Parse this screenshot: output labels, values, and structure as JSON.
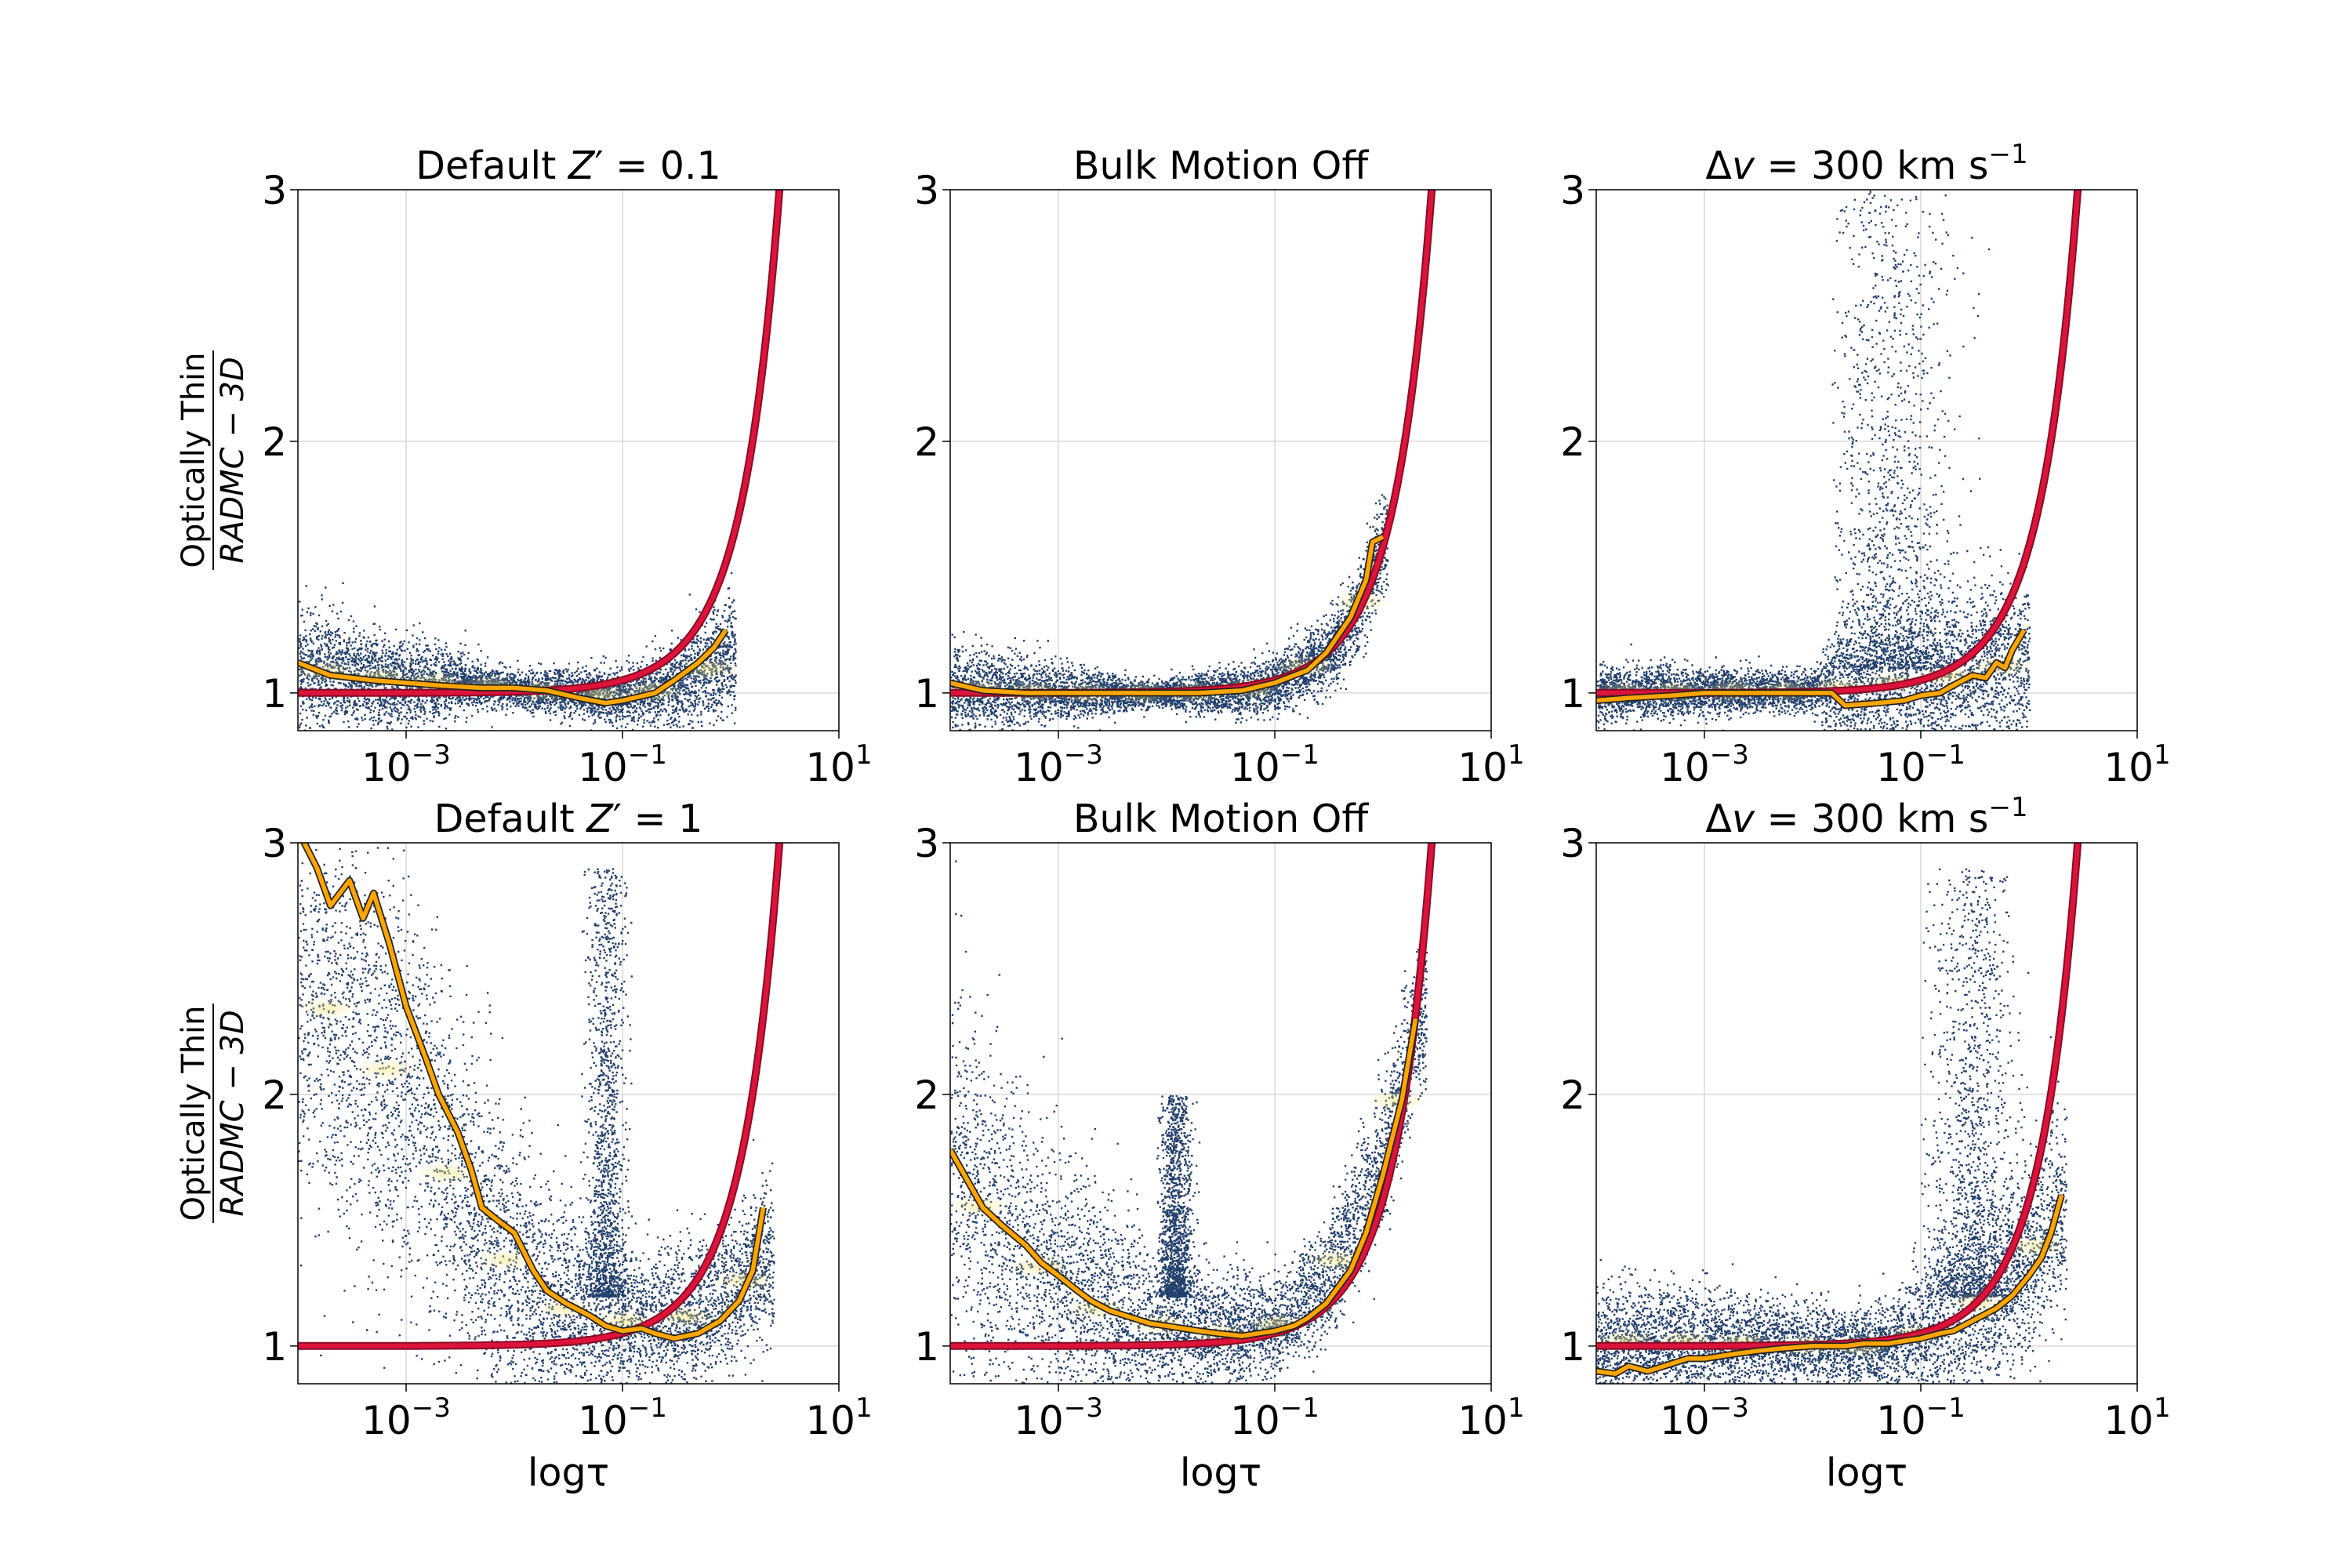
{
  "colors": {
    "scatter_low": "#0b2a5c",
    "scatter_high": "#f2e27a",
    "median_line": "#ffa500",
    "median_edge": "#222222",
    "model_curve": "#dc143c"
  },
  "chart_data": [
    {
      "type": "scatter",
      "title": "Default Z' = 0.1",
      "title_parts": [
        "Default ",
        "Z",
        "′",
        " = 0.1"
      ],
      "xscale": "log",
      "xlim": [
        0.0001,
        10
      ],
      "ylim": [
        0.85,
        3
      ],
      "xticks": [
        0.001,
        0.1,
        10
      ],
      "xtick_labels": [
        {
          "base": "10",
          "exp": "−3"
        },
        {
          "base": "10",
          "exp": "−1"
        },
        {
          "base": "10",
          "exp": "1"
        }
      ],
      "yticks": [
        1,
        2,
        3
      ],
      "ytick_labels": [
        "1",
        "2",
        "3"
      ],
      "ylabel": {
        "numerator": "Optically Thin",
        "denominator": "RADMC − 3D"
      },
      "xlabel": "",
      "scatter_profile": {
        "center": [
          [
            0.0001,
            1.1
          ],
          [
            0.001,
            1.05
          ],
          [
            0.005,
            1.03
          ],
          [
            0.01,
            1.02
          ],
          [
            0.03,
            1.0
          ],
          [
            0.1,
            0.99
          ],
          [
            0.3,
            1.02
          ],
          [
            1,
            1.15
          ]
        ],
        "spread": [
          [
            0.0001,
            0.16
          ],
          [
            0.001,
            0.13
          ],
          [
            0.008,
            0.05
          ],
          [
            0.02,
            0.06
          ],
          [
            0.1,
            0.08
          ],
          [
            0.5,
            0.15
          ],
          [
            1,
            0.18
          ]
        ],
        "x_range": [
          0.0001,
          1.1
        ],
        "plume": null
      },
      "median_line": {
        "x": [
          0.0001,
          0.0002,
          0.0005,
          0.001,
          0.002,
          0.005,
          0.01,
          0.02,
          0.04,
          0.07,
          0.1,
          0.2,
          0.3,
          0.5,
          0.7,
          0.9
        ],
        "y": [
          1.12,
          1.07,
          1.05,
          1.04,
          1.03,
          1.02,
          1.02,
          1.01,
          0.98,
          0.96,
          0.97,
          1.0,
          1.05,
          1.12,
          1.18,
          1.25
        ]
      },
      "model_curve": "tau/(1-exp(-tau))"
    },
    {
      "type": "scatter",
      "title": "Bulk Motion Off",
      "title_parts": [
        "Bulk Motion Off"
      ],
      "xscale": "log",
      "xlim": [
        0.0001,
        10
      ],
      "ylim": [
        0.85,
        3
      ],
      "xticks": [
        0.001,
        0.1,
        10
      ],
      "xtick_labels": [
        {
          "base": "10",
          "exp": "−3"
        },
        {
          "base": "10",
          "exp": "−1"
        },
        {
          "base": "10",
          "exp": "1"
        }
      ],
      "yticks": [
        1,
        2,
        3
      ],
      "ytick_labels": [
        "1",
        "2",
        "3"
      ],
      "ylabel": null,
      "xlabel": "",
      "scatter_profile": {
        "center": [
          [
            0.0001,
            1.02
          ],
          [
            0.001,
            1.0
          ],
          [
            0.01,
            1.0
          ],
          [
            0.05,
            1.01
          ],
          [
            0.1,
            1.04
          ],
          [
            0.3,
            1.15
          ],
          [
            0.6,
            1.35
          ],
          [
            1,
            1.6
          ]
        ],
        "spread": [
          [
            0.0001,
            0.12
          ],
          [
            0.001,
            0.08
          ],
          [
            0.008,
            0.03
          ],
          [
            0.02,
            0.06
          ],
          [
            0.1,
            0.08
          ],
          [
            0.5,
            0.12
          ],
          [
            1,
            0.15
          ]
        ],
        "x_range": [
          0.0001,
          1.1
        ],
        "plume": null
      },
      "median_line": {
        "x": [
          0.0001,
          0.0002,
          0.0005,
          0.001,
          0.002,
          0.005,
          0.01,
          0.02,
          0.05,
          0.1,
          0.2,
          0.3,
          0.5,
          0.7,
          0.8,
          1.0
        ],
        "y": [
          1.04,
          1.01,
          1.0,
          1.0,
          1.0,
          1.0,
          1.0,
          1.0,
          1.01,
          1.04,
          1.09,
          1.16,
          1.3,
          1.45,
          1.6,
          1.62
        ]
      },
      "model_curve": "tau/(1-exp(-tau))"
    },
    {
      "type": "scatter",
      "title": "Δv = 300 km s⁻¹",
      "title_parts": [
        "Δ",
        "v",
        " = 300 km s",
        "−1"
      ],
      "xscale": "log",
      "xlim": [
        0.0001,
        10
      ],
      "ylim": [
        0.85,
        3
      ],
      "xticks": [
        0.001,
        0.1,
        10
      ],
      "xtick_labels": [
        {
          "base": "10",
          "exp": "−3"
        },
        {
          "base": "10",
          "exp": "−1"
        },
        {
          "base": "10",
          "exp": "1"
        }
      ],
      "yticks": [
        1,
        2,
        3
      ],
      "ytick_labels": [
        "1",
        "2",
        "3"
      ],
      "ylabel": null,
      "xlabel": "",
      "scatter_profile": {
        "center": [
          [
            0.0001,
            1.0
          ],
          [
            0.001,
            1.01
          ],
          [
            0.01,
            1.01
          ],
          [
            0.015,
            1.02
          ],
          [
            0.1,
            1.05
          ],
          [
            0.5,
            1.1
          ],
          [
            1,
            1.15
          ]
        ],
        "spread": [
          [
            0.0001,
            0.08
          ],
          [
            0.001,
            0.07
          ],
          [
            0.01,
            0.05
          ],
          [
            0.02,
            0.2
          ],
          [
            0.1,
            0.25
          ],
          [
            1,
            0.25
          ]
        ],
        "x_range": [
          0.0001,
          1.0
        ],
        "plume": {
          "x_range": [
            0.015,
            0.6
          ],
          "y_range": [
            1.1,
            3.0
          ],
          "peak_x": 0.05
        }
      },
      "median_line": {
        "x": [
          0.0001,
          0.0002,
          0.0005,
          0.001,
          0.003,
          0.01,
          0.015,
          0.02,
          0.04,
          0.07,
          0.1,
          0.15,
          0.2,
          0.3,
          0.4,
          0.5,
          0.6,
          0.7,
          0.9
        ],
        "y": [
          0.97,
          0.98,
          0.99,
          1.0,
          1.0,
          1.0,
          1.0,
          0.95,
          0.96,
          0.97,
          0.99,
          1.0,
          1.03,
          1.07,
          1.06,
          1.12,
          1.1,
          1.17,
          1.25
        ]
      },
      "model_curve": "tau/(1-exp(-tau))"
    },
    {
      "type": "scatter",
      "title": "Default Z' = 1",
      "title_parts": [
        "Default ",
        "Z",
        "′",
        " = 1"
      ],
      "xscale": "log",
      "xlim": [
        0.0001,
        10
      ],
      "ylim": [
        0.85,
        3
      ],
      "xticks": [
        0.001,
        0.1,
        10
      ],
      "xtick_labels": [
        {
          "base": "10",
          "exp": "−3"
        },
        {
          "base": "10",
          "exp": "−1"
        },
        {
          "base": "10",
          "exp": "1"
        }
      ],
      "yticks": [
        1,
        2,
        3
      ],
      "ytick_labels": [
        "1",
        "2",
        "3"
      ],
      "ylabel": {
        "numerator": "Optically Thin",
        "denominator": "RADMC − 3D"
      },
      "xlabel": "logτ",
      "scatter_profile": {
        "center": [
          [
            0.0001,
            2.4
          ],
          [
            0.0003,
            2.3
          ],
          [
            0.001,
            2.0
          ],
          [
            0.003,
            1.6
          ],
          [
            0.01,
            1.3
          ],
          [
            0.03,
            1.15
          ],
          [
            0.1,
            1.1
          ],
          [
            0.3,
            1.1
          ],
          [
            1,
            1.2
          ],
          [
            2,
            1.35
          ]
        ],
        "spread": [
          [
            0.0001,
            0.6
          ],
          [
            0.001,
            0.6
          ],
          [
            0.01,
            0.4
          ],
          [
            0.05,
            0.25
          ],
          [
            0.2,
            0.2
          ],
          [
            1,
            0.2
          ],
          [
            2,
            0.22
          ]
        ],
        "x_range": [
          0.0001,
          2.5
        ],
        "plume": {
          "x_range": [
            0.04,
            0.12
          ],
          "y_range": [
            1.2,
            2.9
          ],
          "peak_x": 0.07
        }
      },
      "median_line": {
        "x": [
          0.0001,
          0.00015,
          0.0002,
          0.0003,
          0.0004,
          0.0005,
          0.0007,
          0.001,
          0.0015,
          0.002,
          0.003,
          0.004,
          0.005,
          0.007,
          0.01,
          0.015,
          0.02,
          0.03,
          0.05,
          0.07,
          0.1,
          0.15,
          0.2,
          0.3,
          0.5,
          0.8,
          1.2,
          1.6,
          2.0
        ],
        "y": [
          3.05,
          2.9,
          2.75,
          2.85,
          2.7,
          2.8,
          2.6,
          2.35,
          2.15,
          2.0,
          1.85,
          1.7,
          1.55,
          1.5,
          1.45,
          1.3,
          1.22,
          1.17,
          1.12,
          1.08,
          1.06,
          1.07,
          1.05,
          1.03,
          1.05,
          1.1,
          1.18,
          1.3,
          1.55
        ]
      },
      "model_curve": "tau/(1-exp(-tau))"
    },
    {
      "type": "scatter",
      "title": "Bulk Motion Off",
      "title_parts": [
        "Bulk Motion Off"
      ],
      "xscale": "log",
      "xlim": [
        0.0001,
        10
      ],
      "ylim": [
        0.85,
        3
      ],
      "xticks": [
        0.001,
        0.1,
        10
      ],
      "xtick_labels": [
        {
          "base": "10",
          "exp": "−3"
        },
        {
          "base": "10",
          "exp": "−1"
        },
        {
          "base": "10",
          "exp": "1"
        }
      ],
      "yticks": [
        1,
        2,
        3
      ],
      "ytick_labels": [
        "1",
        "2",
        "3"
      ],
      "ylabel": null,
      "xlabel": "logτ",
      "scatter_profile": {
        "center": [
          [
            0.0001,
            1.7
          ],
          [
            0.0003,
            1.45
          ],
          [
            0.001,
            1.25
          ],
          [
            0.003,
            1.12
          ],
          [
            0.01,
            1.08
          ],
          [
            0.03,
            1.05
          ],
          [
            0.1,
            1.08
          ],
          [
            0.3,
            1.25
          ],
          [
            1,
            1.75
          ],
          [
            2,
            2.3
          ]
        ],
        "spread": [
          [
            0.0001,
            0.55
          ],
          [
            0.001,
            0.4
          ],
          [
            0.01,
            0.2
          ],
          [
            0.05,
            0.15
          ],
          [
            0.2,
            0.15
          ],
          [
            1,
            0.2
          ],
          [
            2,
            0.2
          ]
        ],
        "x_range": [
          0.0001,
          2.5
        ],
        "plume": {
          "x_range": [
            0.008,
            0.02
          ],
          "y_range": [
            1.2,
            2.0
          ],
          "peak_x": 0.012
        }
      },
      "median_line": {
        "x": [
          0.0001,
          0.0002,
          0.0003,
          0.0005,
          0.0007,
          0.001,
          0.0015,
          0.002,
          0.003,
          0.005,
          0.007,
          0.01,
          0.02,
          0.03,
          0.05,
          0.07,
          0.1,
          0.15,
          0.2,
          0.3,
          0.5,
          0.7,
          1.0,
          1.5,
          2.0
        ],
        "y": [
          1.78,
          1.55,
          1.48,
          1.4,
          1.33,
          1.28,
          1.22,
          1.18,
          1.14,
          1.11,
          1.09,
          1.08,
          1.06,
          1.05,
          1.04,
          1.05,
          1.06,
          1.08,
          1.11,
          1.17,
          1.3,
          1.45,
          1.68,
          1.98,
          2.3
        ]
      },
      "model_curve": "tau/(1-exp(-tau))"
    },
    {
      "type": "scatter",
      "title": "Δv = 300 km s⁻¹",
      "title_parts": [
        "Δ",
        "v",
        " = 300 km s",
        "−1"
      ],
      "xscale": "log",
      "xlim": [
        0.0001,
        10
      ],
      "ylim": [
        0.85,
        3
      ],
      "xticks": [
        0.001,
        0.1,
        10
      ],
      "xtick_labels": [
        {
          "base": "10",
          "exp": "−3"
        },
        {
          "base": "10",
          "exp": "−1"
        },
        {
          "base": "10",
          "exp": "1"
        }
      ],
      "yticks": [
        1,
        2,
        3
      ],
      "ytick_labels": [
        "1",
        "2",
        "3"
      ],
      "ylabel": null,
      "xlabel": "logτ",
      "scatter_profile": {
        "center": [
          [
            0.0001,
            1.02
          ],
          [
            0.001,
            1.02
          ],
          [
            0.01,
            1.0
          ],
          [
            0.05,
            1.0
          ],
          [
            0.1,
            1.05
          ],
          [
            0.3,
            1.15
          ],
          [
            1,
            1.35
          ],
          [
            2,
            1.55
          ]
        ],
        "spread": [
          [
            0.0001,
            0.15
          ],
          [
            0.001,
            0.15
          ],
          [
            0.01,
            0.12
          ],
          [
            0.05,
            0.1
          ],
          [
            0.1,
            0.25
          ],
          [
            1,
            0.3
          ],
          [
            2,
            0.3
          ]
        ],
        "x_range": [
          0.0001,
          2.2
        ],
        "plume": {
          "x_range": [
            0.1,
            1.2
          ],
          "y_range": [
            1.2,
            2.9
          ],
          "peak_x": 0.3
        }
      },
      "median_line": {
        "x": [
          0.0001,
          0.00015,
          0.0002,
          0.0003,
          0.0005,
          0.0007,
          0.001,
          0.002,
          0.003,
          0.005,
          0.01,
          0.02,
          0.03,
          0.05,
          0.07,
          0.1,
          0.15,
          0.2,
          0.3,
          0.5,
          0.7,
          1.0,
          1.3,
          1.6,
          2.0
        ],
        "y": [
          0.9,
          0.89,
          0.92,
          0.9,
          0.93,
          0.95,
          0.95,
          0.97,
          0.98,
          0.99,
          1.0,
          1.0,
          1.01,
          1.01,
          1.02,
          1.03,
          1.05,
          1.06,
          1.1,
          1.15,
          1.2,
          1.28,
          1.35,
          1.45,
          1.6
        ]
      },
      "model_curve": "tau/(1-exp(-tau))"
    }
  ]
}
